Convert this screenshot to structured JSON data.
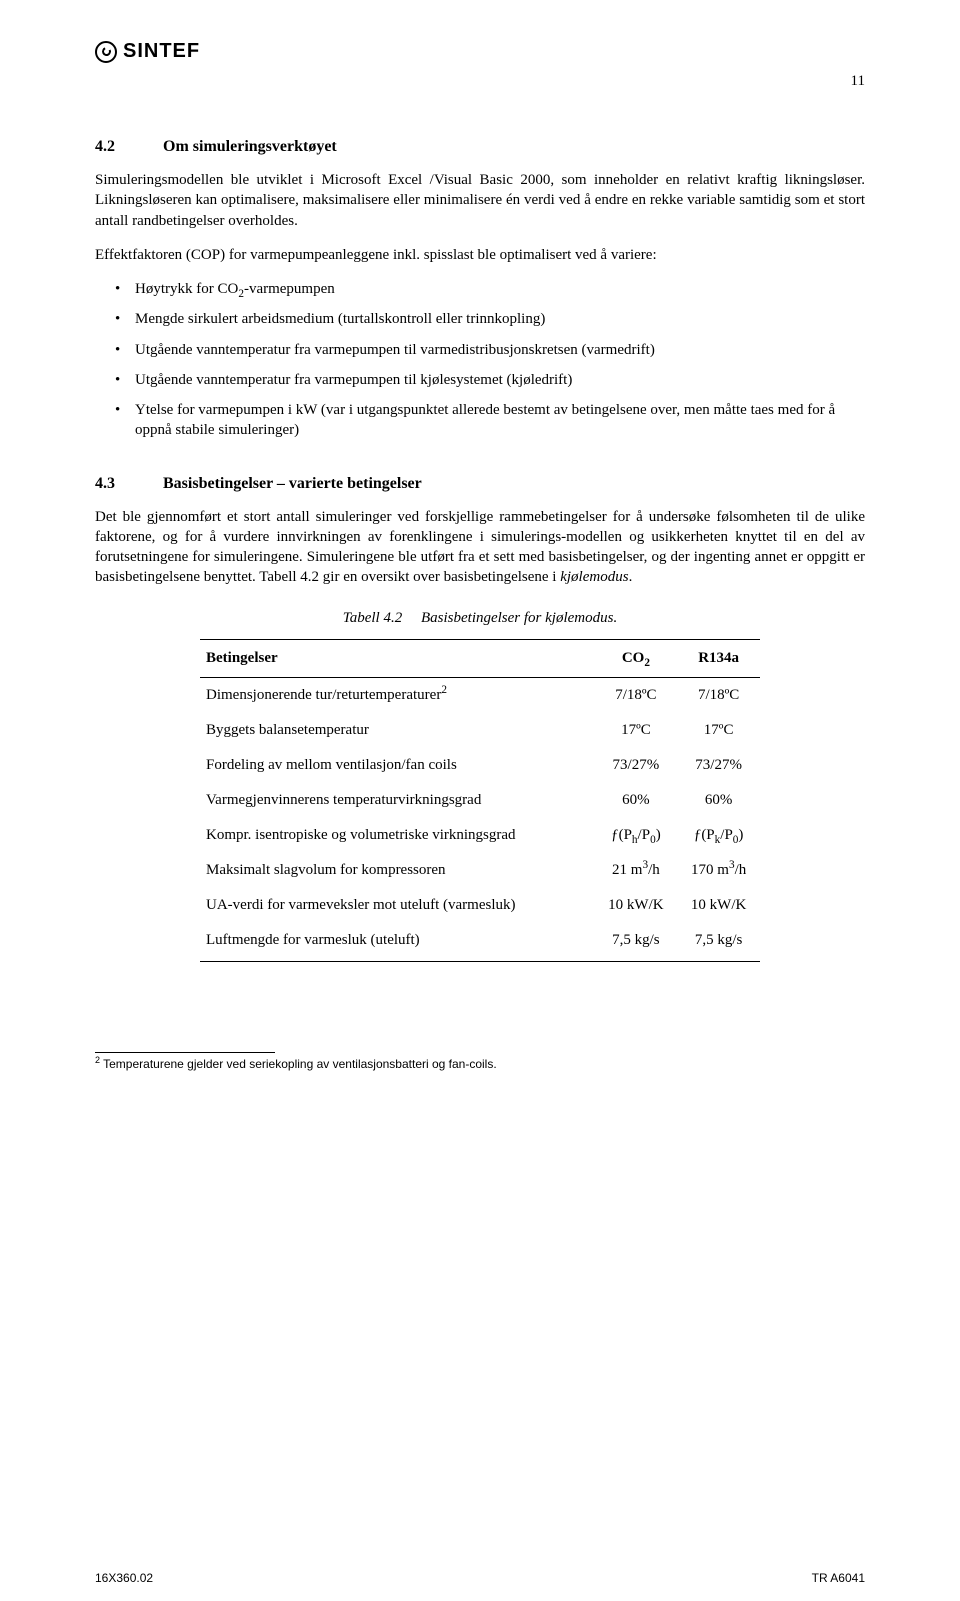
{
  "logo_text": "SINTEF",
  "page_number": "11",
  "s42": {
    "num": "4.2",
    "title": "Om simuleringsverktøyet",
    "p1": "Simuleringsmodellen ble utviklet i Microsoft Excel /Visual Basic 2000, som inneholder en relativt kraftig likningsløser. Likningsløseren kan optimalisere, maksimalisere eller minimalisere én verdi ved å endre en rekke variable samtidig som et stort antall randbetingelser overholdes.",
    "p2": "Effektfaktoren (COP) for varmepumpeanleggene inkl. spisslast ble optimalisert ved å variere:",
    "bullets": {
      "b1_a": "Høytrykk for CO",
      "b1_b": "-varmepumpen",
      "b2": "Mengde sirkulert arbeidsmedium (turtallskontroll eller trinnkopling)",
      "b3": "Utgående vanntemperatur fra varmepumpen til varmedistribusjonskretsen (varmedrift)",
      "b4": "Utgående vanntemperatur fra varmepumpen til kjølesystemet (kjøledrift)",
      "b5": "Ytelse for varmepumpen i kW (var i utgangspunktet allerede bestemt av betingelsene over, men måtte taes med for å oppnå stabile simuleringer)"
    }
  },
  "s43": {
    "num": "4.3",
    "title": "Basisbetingelser – varierte betingelser",
    "p1_a": "Det ble gjennomført et stort antall simuleringer ved forskjellige rammebetingelser for å undersøke følsomheten til de ulike faktorene, og for å vurdere innvirkningen av forenklingene i simulerings-modellen og usikkerheten knyttet til en del av forutsetningene for simuleringene. Simuleringene ble utført fra et sett med basisbetingelser, og der ingenting annet er oppgitt er basisbetingelsene benyttet. Tabell 4.2 gir en oversikt over basisbetingelsene i ",
    "p1_b": "kjølemodus",
    "p1_c": "."
  },
  "table": {
    "caption_a": "Tabell 4.2",
    "caption_b": "Basisbetingelser for kjølemodus.",
    "h1": "Betingelser",
    "h2a": "CO",
    "h2b": "2",
    "h3": "R134a",
    "rows": [
      {
        "label": "Dimensjonerende tur/returtemperaturer",
        "fn": "2",
        "c1": "7/18ºC",
        "c2": "7/18ºC"
      },
      {
        "label": "Byggets balansetemperatur",
        "fn": "",
        "c1": "17ºC",
        "c2": "17ºC"
      },
      {
        "label": "Fordeling av mellom ventilasjon/fan coils",
        "fn": "",
        "c1": "73/27%",
        "c2": "73/27%"
      },
      {
        "label": "Varmegjenvinnerens temperaturvirkningsgrad",
        "fn": "",
        "c1": "60%",
        "c2": "60%"
      },
      {
        "label": "Kompr. isentropiske og volumetriske virkningsgrad",
        "fn": "",
        "c1": "ƒ(Ph/P0)",
        "c2": "ƒ(Pk/P0)",
        "special": "ratio"
      },
      {
        "label": "Maksimalt slagvolum for kompressoren",
        "fn": "",
        "c1": "21 m3/h",
        "c2": "170 m3/h",
        "special": "vol"
      },
      {
        "label": "UA-verdi for varmeveksler mot uteluft (varmesluk)",
        "fn": "",
        "c1": "10 kW/K",
        "c2": "10 kW/K"
      },
      {
        "label": "Luftmengde for varmesluk (uteluft)",
        "fn": "",
        "c1": "7,5 kg/s",
        "c2": "7,5 kg/s"
      }
    ]
  },
  "footnote": {
    "num": "2",
    "text": " Temperaturene gjelder ved seriekopling av ventilasjonsbatteri og fan-coils."
  },
  "footer": {
    "left": "16X360.02",
    "right": "TR A6041"
  }
}
